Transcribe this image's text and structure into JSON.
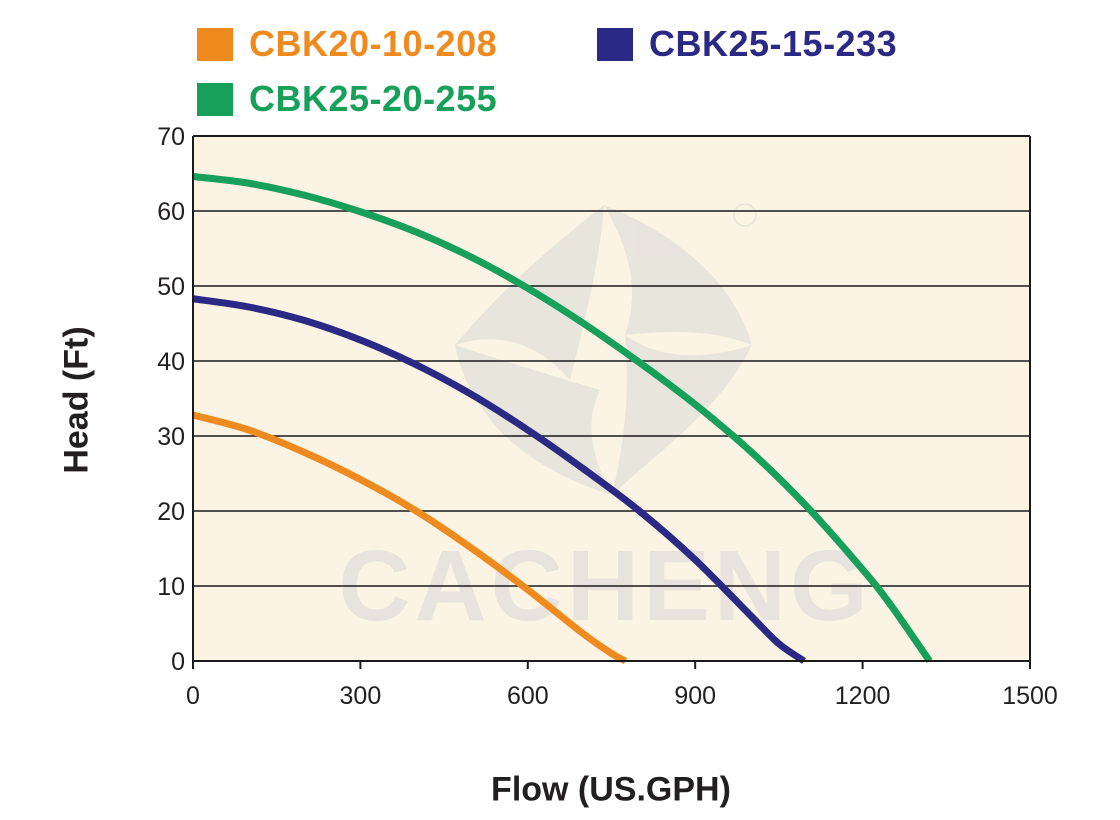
{
  "colors": {
    "plot_background": "#fbf3e3",
    "grid": "#1a1a1a",
    "axis_text": "#231f20",
    "watermark": "#d9d9d9"
  },
  "chart_data": {
    "type": "line",
    "xlabel": "Flow (US.GPH)",
    "ylabel": "Head (Ft)",
    "xlim": [
      0,
      1500
    ],
    "ylim": [
      0,
      70
    ],
    "xticks": [
      0,
      300,
      600,
      900,
      1200,
      1500
    ],
    "yticks": [
      0,
      10,
      20,
      30,
      40,
      50,
      60,
      70
    ],
    "grid": "horizontal",
    "legend_position": "top",
    "watermark_text": "CACHENG",
    "series": [
      {
        "name": "CBK20-10-208",
        "color": "#ef8a1f",
        "x": [
          0,
          100,
          200,
          300,
          400,
          500,
          600,
          700,
          750,
          775
        ],
        "y": [
          32.8,
          30.8,
          27.8,
          24.2,
          20.0,
          15.0,
          9.5,
          3.6,
          1.0,
          0
        ]
      },
      {
        "name": "CBK25-15-233",
        "color": "#2a2a86",
        "x": [
          0,
          100,
          200,
          300,
          400,
          500,
          600,
          700,
          800,
          900,
          1000,
          1050,
          1095
        ],
        "y": [
          48.3,
          47.2,
          45.4,
          42.8,
          39.5,
          35.5,
          30.8,
          25.6,
          20.0,
          13.5,
          6.0,
          2.3,
          0
        ]
      },
      {
        "name": "CBK25-20-255",
        "color": "#17a05a",
        "x": [
          0,
          100,
          200,
          300,
          400,
          500,
          600,
          700,
          800,
          900,
          1000,
          1100,
          1200,
          1250,
          1320
        ],
        "y": [
          64.6,
          63.7,
          62.1,
          59.9,
          57.2,
          53.8,
          49.7,
          45.0,
          39.8,
          34.2,
          27.9,
          20.6,
          12.2,
          7.5,
          0
        ]
      }
    ]
  }
}
